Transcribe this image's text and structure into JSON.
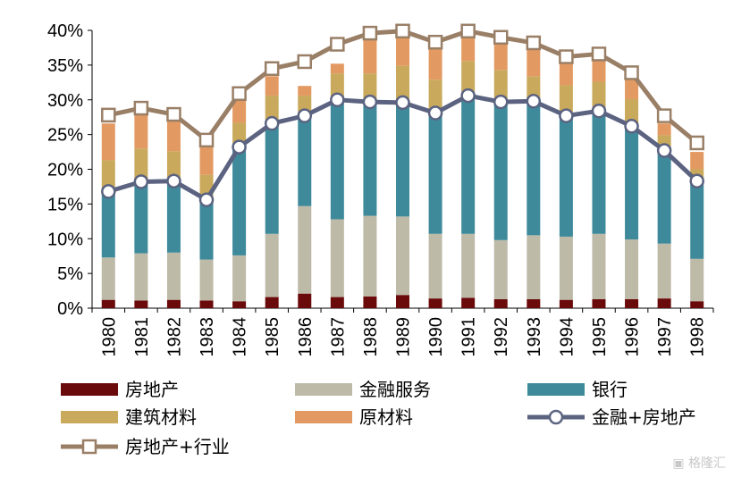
{
  "chart_data": {
    "type": "bar",
    "categories": [
      "1980",
      "1981",
      "1982",
      "1983",
      "1984",
      "1985",
      "1986",
      "1987",
      "1988",
      "1989",
      "1990",
      "1991",
      "1992",
      "1993",
      "1994",
      "1995",
      "1996",
      "1997",
      "1998"
    ],
    "ylim": [
      0,
      40
    ],
    "yticks": [
      "0%",
      "5%",
      "10%",
      "15%",
      "20%",
      "25%",
      "30%",
      "35%",
      "40%"
    ],
    "stack_series": [
      {
        "name": "房地产",
        "color": "#6b0a0a",
        "values": [
          1.2,
          1.1,
          1.2,
          1.1,
          1.0,
          1.6,
          2.1,
          1.6,
          1.7,
          1.9,
          1.4,
          1.5,
          1.3,
          1.3,
          1.2,
          1.3,
          1.3,
          1.4,
          1.0
        ]
      },
      {
        "name": "金融服务",
        "color": "#bdbaa8",
        "values": [
          6.1,
          6.8,
          6.8,
          5.9,
          6.6,
          9.1,
          12.6,
          11.2,
          11.6,
          11.3,
          9.3,
          9.2,
          8.5,
          9.2,
          9.1,
          9.4,
          8.6,
          7.9,
          6.1
        ]
      },
      {
        "name": "银行",
        "color": "#3e8a9b",
        "values": [
          9.5,
          10.3,
          10.3,
          8.6,
          15.6,
          15.9,
          13.0,
          17.2,
          16.4,
          16.4,
          17.4,
          19.9,
          19.9,
          19.3,
          17.4,
          17.7,
          16.3,
          13.4,
          11.2
        ]
      },
      {
        "name": "建筑材料",
        "color": "#c9a95c",
        "values": [
          4.5,
          4.8,
          4.3,
          3.6,
          3.5,
          4.0,
          2.9,
          3.8,
          4.1,
          5.3,
          4.8,
          5.0,
          4.6,
          3.6,
          4.4,
          4.2,
          3.9,
          2.2,
          1.7
        ]
      },
      {
        "name": "原材料",
        "color": "#e39a62",
        "values": [
          5.3,
          5.0,
          5.1,
          4.3,
          3.4,
          2.8,
          1.4,
          1.4,
          5.3,
          4.1,
          4.5,
          4.4,
          4.0,
          4.1,
          3.3,
          3.5,
          3.0,
          1.7,
          2.5
        ]
      }
    ],
    "line_series": [
      {
        "name": "金融+房地产",
        "color": "#5b6381",
        "marker": "circle",
        "values": [
          16.8,
          18.2,
          18.3,
          15.6,
          23.2,
          26.6,
          27.7,
          30.0,
          29.7,
          29.6,
          28.1,
          30.6,
          29.7,
          29.8,
          27.7,
          28.4,
          26.2,
          22.7,
          18.3
        ]
      },
      {
        "name": "房地产+行业",
        "color": "#9a7f67",
        "marker": "square",
        "values": [
          27.8,
          28.8,
          27.9,
          24.2,
          30.9,
          34.5,
          35.5,
          38.0,
          39.6,
          39.9,
          38.3,
          39.9,
          39.0,
          38.2,
          36.2,
          36.6,
          33.9,
          27.7,
          23.8
        ]
      }
    ],
    "legend": {
      "position": "bottom",
      "items": [
        "房地产",
        "金融服务",
        "银行",
        "建筑材料",
        "原材料",
        "金融+房地产",
        "房地产+行业"
      ]
    },
    "grid": false
  },
  "watermark": "格隆汇"
}
